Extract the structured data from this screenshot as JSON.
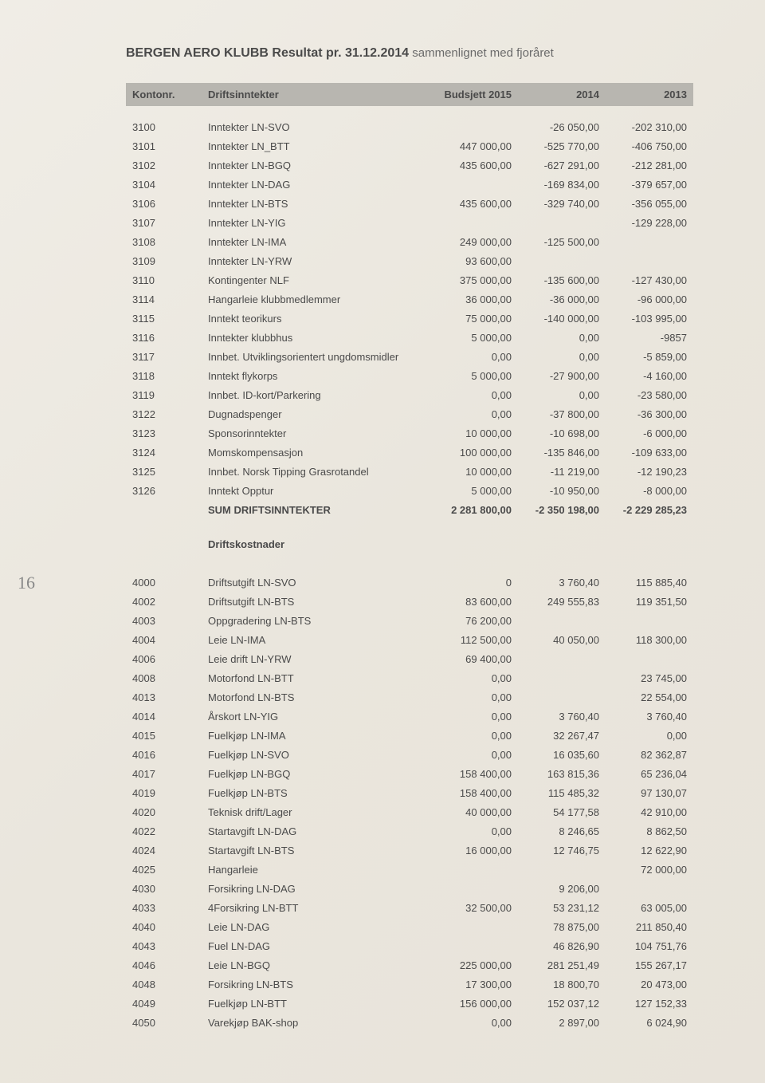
{
  "page_number": "16",
  "title_bold": "BERGEN AERO KLUBB Resultat pr. 31.12.2014",
  "title_rest": " sammenlignet med fjoråret",
  "columns": {
    "kontonr": "Kontonr.",
    "desc": "Driftsinntekter",
    "budsjett": "Budsjett 2015",
    "y2014": "2014",
    "y2013": "2013"
  },
  "income_rows": [
    {
      "k": "3100",
      "d": "Inntekter LN-SVO",
      "b": "",
      "y14": "-26 050,00",
      "y13": "-202 310,00"
    },
    {
      "k": "3101",
      "d": "Inntekter LN_BTT",
      "b": "447 000,00",
      "y14": "-525 770,00",
      "y13": "-406 750,00"
    },
    {
      "k": "3102",
      "d": "Inntekter LN-BGQ",
      "b": "435 600,00",
      "y14": "-627 291,00",
      "y13": "-212 281,00"
    },
    {
      "k": "3104",
      "d": "Inntekter LN-DAG",
      "b": "",
      "y14": "-169 834,00",
      "y13": "-379 657,00"
    },
    {
      "k": "3106",
      "d": "Inntekter LN-BTS",
      "b": "435 600,00",
      "y14": "-329 740,00",
      "y13": "-356 055,00"
    },
    {
      "k": "3107",
      "d": "Inntekter LN-YIG",
      "b": "",
      "y14": "",
      "y13": "-129 228,00"
    },
    {
      "k": "3108",
      "d": "Inntekter LN-IMA",
      "b": "249 000,00",
      "y14": "-125 500,00",
      "y13": ""
    },
    {
      "k": "3109",
      "d": "Inntekter LN-YRW",
      "b": "93 600,00",
      "y14": "",
      "y13": ""
    },
    {
      "k": "3110",
      "d": "Kontingenter NLF",
      "b": "375 000,00",
      "y14": "-135 600,00",
      "y13": "-127 430,00"
    },
    {
      "k": "3114",
      "d": "Hangarleie klubbmedlemmer",
      "b": "36 000,00",
      "y14": "-36 000,00",
      "y13": "-96 000,00"
    },
    {
      "k": "3115",
      "d": "Inntekt teorikurs",
      "b": "75 000,00",
      "y14": "-140 000,00",
      "y13": "-103 995,00"
    },
    {
      "k": "3116",
      "d": "Inntekter klubbhus",
      "b": "5 000,00",
      "y14": "0,00",
      "y13": "-9857"
    },
    {
      "k": "3117",
      "d": "Innbet. Utviklingsorientert ungdomsmidler",
      "b": "0,00",
      "y14": "0,00",
      "y13": "-5 859,00"
    },
    {
      "k": "3118",
      "d": "Inntekt flykorps",
      "b": "5 000,00",
      "y14": "-27 900,00",
      "y13": "-4 160,00"
    },
    {
      "k": "3119",
      "d": "Innbet. ID-kort/Parkering",
      "b": "0,00",
      "y14": "0,00",
      "y13": "-23 580,00"
    },
    {
      "k": "3122",
      "d": "Dugnadspenger",
      "b": "0,00",
      "y14": "-37 800,00",
      "y13": "-36 300,00"
    },
    {
      "k": "3123",
      "d": "Sponsorinntekter",
      "b": "10 000,00",
      "y14": "-10 698,00",
      "y13": "-6 000,00"
    },
    {
      "k": "3124",
      "d": "Momskompensasjon",
      "b": "100 000,00",
      "y14": "-135 846,00",
      "y13": "-109 633,00"
    },
    {
      "k": "3125",
      "d": "Innbet. Norsk Tipping Grasrotandel",
      "b": "10 000,00",
      "y14": "-11 219,00",
      "y13": "-12 190,23"
    },
    {
      "k": "3126",
      "d": "Inntekt Opptur",
      "b": "5 000,00",
      "y14": "-10 950,00",
      "y13": "-8 000,00"
    }
  ],
  "income_sum": {
    "d": "SUM DRIFTSINNTEKTER",
    "b": "2 281 800,00",
    "y14": "-2 350 198,00",
    "y13": "-2 229 285,23"
  },
  "cost_header": "Driftskostnader",
  "cost_rows": [
    {
      "k": "4000",
      "d": "Driftsutgift LN-SVO",
      "b": "0",
      "y14": "3 760,40",
      "y13": "115 885,40"
    },
    {
      "k": "4002",
      "d": "Driftsutgift LN-BTS",
      "b": "83 600,00",
      "y14": "249 555,83",
      "y13": "119 351,50"
    },
    {
      "k": "4003",
      "d": "Oppgradering LN-BTS",
      "b": "76 200,00",
      "y14": "",
      "y13": ""
    },
    {
      "k": "4004",
      "d": "Leie LN-IMA",
      "b": "112 500,00",
      "y14": "40 050,00",
      "y13": "118 300,00"
    },
    {
      "k": "4006",
      "d": "Leie drift LN-YRW",
      "b": "69 400,00",
      "y14": "",
      "y13": ""
    },
    {
      "k": "4008",
      "d": "Motorfond LN-BTT",
      "b": "0,00",
      "y14": "",
      "y13": "23 745,00"
    },
    {
      "k": "4013",
      "d": "Motorfond LN-BTS",
      "b": "0,00",
      "y14": "",
      "y13": "22 554,00"
    },
    {
      "k": "4014",
      "d": "Årskort LN-YIG",
      "b": "0,00",
      "y14": "3 760,40",
      "y13": "3 760,40"
    },
    {
      "k": "4015",
      "d": "Fuelkjøp LN-IMA",
      "b": "0,00",
      "y14": "32 267,47",
      "y13": "0,00"
    },
    {
      "k": "4016",
      "d": "Fuelkjøp LN-SVO",
      "b": "0,00",
      "y14": "16 035,60",
      "y13": "82 362,87"
    },
    {
      "k": "4017",
      "d": "Fuelkjøp LN-BGQ",
      "b": "158 400,00",
      "y14": "163 815,36",
      "y13": "65 236,04"
    },
    {
      "k": "4019",
      "d": "Fuelkjøp LN-BTS",
      "b": "158 400,00",
      "y14": "115 485,32",
      "y13": "97 130,07"
    },
    {
      "k": "4020",
      "d": "Teknisk drift/Lager",
      "b": "40 000,00",
      "y14": "54 177,58",
      "y13": "42 910,00"
    },
    {
      "k": "4022",
      "d": "Startavgift LN-DAG",
      "b": "0,00",
      "y14": "8 246,65",
      "y13": "8 862,50"
    },
    {
      "k": "4024",
      "d": "Startavgift LN-BTS",
      "b": "16 000,00",
      "y14": "12 746,75",
      "y13": "12 622,90"
    },
    {
      "k": "4025",
      "d": "Hangarleie",
      "b": "",
      "y14": "",
      "y13": "72 000,00"
    },
    {
      "k": "4030",
      "d": "Forsikring LN-DAG",
      "b": "",
      "y14": "9 206,00",
      "y13": ""
    },
    {
      "k": "4033",
      "d": "4Forsikring LN-BTT",
      "b": "32 500,00",
      "y14": "53 231,12",
      "y13": "63 005,00"
    },
    {
      "k": "4040",
      "d": "Leie LN-DAG",
      "b": "",
      "y14": "78 875,00",
      "y13": "211 850,40"
    },
    {
      "k": "4043",
      "d": "Fuel LN-DAG",
      "b": "",
      "y14": "46 826,90",
      "y13": "104 751,76"
    },
    {
      "k": "4046",
      "d": "Leie LN-BGQ",
      "b": "225 000,00",
      "y14": "281 251,49",
      "y13": "155 267,17"
    },
    {
      "k": "4048",
      "d": "Forsikring LN-BTS",
      "b": "17 300,00",
      "y14": "18 800,70",
      "y13": "20 473,00"
    },
    {
      "k": "4049",
      "d": "Fuelkjøp LN-BTT",
      "b": "156 000,00",
      "y14": "152 037,12",
      "y13": "127 152,33"
    },
    {
      "k": "4050",
      "d": "Varekjøp BAK-shop",
      "b": "0,00",
      "y14": "2 897,00",
      "y13": "6 024,90"
    }
  ],
  "colors": {
    "header_bg": "#b8b6b0",
    "text": "#4a4a4a",
    "bg_start": "#f0ede6",
    "bg_end": "#e8e3da"
  }
}
